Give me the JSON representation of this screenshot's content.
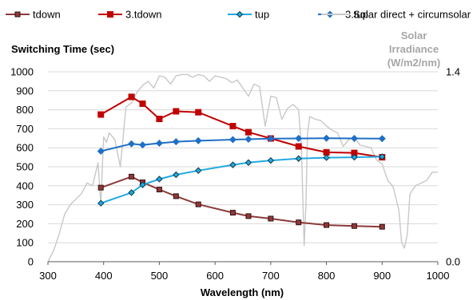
{
  "chart_data": {
    "type": "line",
    "title": "",
    "ylabel": "Switching Time (sec)",
    "xlabel": "Wavelength (nm)",
    "y2label_lines": [
      "Solar",
      "Irradiance",
      "(W/m2/nm)"
    ],
    "xlim": [
      300,
      1000
    ],
    "ylim": [
      0,
      1000
    ],
    "y2lim": [
      0.0,
      1.4
    ],
    "x_ticks": [
      "300",
      "400",
      "500",
      "600",
      "700",
      "800",
      "900",
      "1000"
    ],
    "y_ticks": [
      "0",
      "100",
      "200",
      "300",
      "400",
      "500",
      "600",
      "700",
      "800",
      "900",
      "1000"
    ],
    "y2_ticks": [
      "0.0",
      "1.4"
    ],
    "grid": "horizontal",
    "legend_position": "top",
    "series": [
      {
        "name": "tdown",
        "color": "#8b3a3a",
        "marker": "square-small",
        "x": [
          395,
          450,
          470,
          500,
          530,
          570,
          632,
          660,
          700,
          750,
          800,
          850,
          900
        ],
        "y": [
          390,
          448,
          418,
          380,
          345,
          302,
          258,
          240,
          227,
          207,
          193,
          188,
          184
        ]
      },
      {
        "name": "3.tdown",
        "color": "#c00000",
        "marker": "square",
        "x": [
          395,
          450,
          470,
          500,
          530,
          570,
          632,
          660,
          700,
          750,
          800,
          850,
          900
        ],
        "y": [
          775,
          868,
          832,
          752,
          792,
          787,
          714,
          682,
          649,
          607,
          576,
          573,
          550
        ]
      },
      {
        "name": "tup",
        "color": "#23a9e1",
        "marker": "diamond-small",
        "x": [
          395,
          450,
          470,
          500,
          530,
          570,
          632,
          660,
          700,
          750,
          800,
          850,
          900
        ],
        "y": [
          308,
          364,
          405,
          435,
          458,
          480,
          510,
          522,
          533,
          543,
          548,
          550,
          553
        ]
      },
      {
        "name": "3.tup",
        "color": "#1f6fc5",
        "marker": "diamond",
        "x": [
          395,
          450,
          470,
          500,
          530,
          570,
          632,
          660,
          700,
          750,
          800,
          850,
          900
        ],
        "y": [
          582,
          621,
          615,
          624,
          632,
          637,
          643,
          645,
          648,
          649,
          650,
          649,
          648
        ]
      },
      {
        "name": "Solar direct + circumsolar",
        "color": "#c8c8c8",
        "marker": "none",
        "axis": "right",
        "x": [
          300,
          310,
          320,
          330,
          340,
          350,
          360,
          370,
          380,
          390,
          395,
          400,
          405,
          410,
          420,
          430,
          440,
          450,
          460,
          470,
          480,
          490,
          500,
          510,
          520,
          530,
          540,
          550,
          560,
          570,
          580,
          590,
          600,
          610,
          620,
          630,
          640,
          650,
          660,
          670,
          680,
          690,
          700,
          710,
          720,
          730,
          740,
          750,
          755,
          760,
          763,
          766,
          770,
          780,
          790,
          800,
          810,
          820,
          830,
          840,
          850,
          860,
          870,
          880,
          890,
          900,
          910,
          920,
          930,
          935,
          940,
          945,
          950,
          960,
          970,
          980,
          990,
          1000
        ],
        "y": [
          0.0,
          0.08,
          0.2,
          0.35,
          0.42,
          0.46,
          0.5,
          0.58,
          0.56,
          0.73,
          0.42,
          0.92,
          0.88,
          0.95,
          0.9,
          0.7,
          1.14,
          1.17,
          1.25,
          1.3,
          1.33,
          1.28,
          1.37,
          1.36,
          1.31,
          1.37,
          1.38,
          1.38,
          1.36,
          1.38,
          1.37,
          1.33,
          1.37,
          1.36,
          1.35,
          1.32,
          1.34,
          1.28,
          1.22,
          1.31,
          1.29,
          1.0,
          1.22,
          1.21,
          1.05,
          1.13,
          1.16,
          1.12,
          0.85,
          0.12,
          0.4,
          0.95,
          1.07,
          1.05,
          1.04,
          1.0,
          0.97,
          0.95,
          0.85,
          0.9,
          0.92,
          0.86,
          0.85,
          0.84,
          0.75,
          0.72,
          0.6,
          0.55,
          0.38,
          0.14,
          0.1,
          0.2,
          0.5,
          0.56,
          0.58,
          0.6,
          0.66,
          0.66
        ]
      }
    ]
  }
}
